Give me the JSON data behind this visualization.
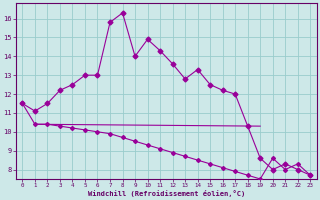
{
  "xlabel": "Windchill (Refroidissement éolien,°C)",
  "background_color": "#cde8e8",
  "grid_color": "#99cccc",
  "line_color": "#990099",
  "x_hours": [
    0,
    1,
    2,
    3,
    4,
    5,
    6,
    7,
    8,
    9,
    10,
    11,
    12,
    13,
    14,
    15,
    16,
    17,
    18,
    19,
    20,
    21,
    22,
    23
  ],
  "temp_line": [
    11.5,
    11.1,
    11.5,
    12.2,
    12.5,
    13.0,
    13.0,
    15.8,
    16.3,
    14.0,
    14.9,
    14.3,
    13.6,
    12.8,
    13.3,
    12.5,
    12.2,
    12.0,
    10.3,
    8.6,
    8.0,
    8.3,
    8.0,
    7.7
  ],
  "windchill_line": [
    11.5,
    10.4,
    10.4,
    10.3,
    10.2,
    10.1,
    10.0,
    9.9,
    9.7,
    9.5,
    9.3,
    9.1,
    8.9,
    8.7,
    8.5,
    8.3,
    8.1,
    7.9,
    7.7,
    7.5,
    8.6,
    8.0,
    8.3,
    7.7
  ],
  "flat_line_x": [
    1,
    19
  ],
  "flat_line_y": [
    10.4,
    10.3
  ],
  "ylim": [
    7.5,
    16.8
  ],
  "yticks": [
    8,
    9,
    10,
    11,
    12,
    13,
    14,
    15,
    16
  ],
  "xticks": [
    0,
    1,
    2,
    3,
    4,
    5,
    6,
    7,
    8,
    9,
    10,
    11,
    12,
    13,
    14,
    15,
    16,
    17,
    18,
    19,
    20,
    21,
    22,
    23
  ]
}
